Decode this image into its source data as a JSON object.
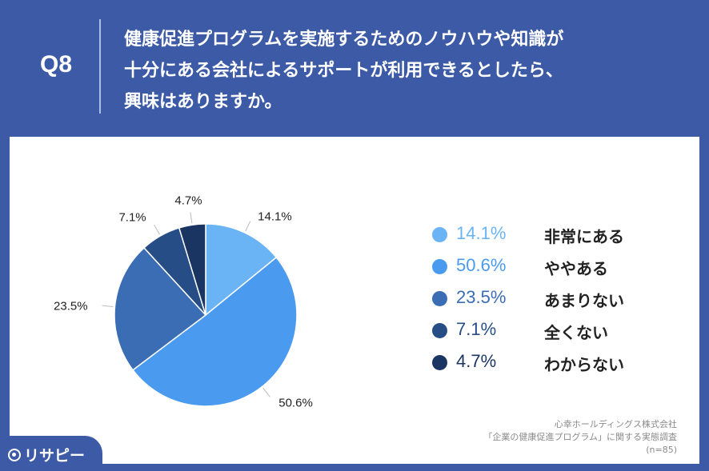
{
  "header": {
    "question_number": "Q8",
    "question_lines": [
      "健康促進プログラムを実施するためのノウハウや知識が",
      "十分にある会社によるサポートが利用できるとしたら、",
      "興味はありますか。"
    ]
  },
  "chart_data": {
    "type": "pie",
    "slices": [
      {
        "label": "非常にある",
        "value": 14.1,
        "display": "14.1%",
        "color": "#6ab4f5"
      },
      {
        "label": "ややある",
        "value": 50.6,
        "display": "50.6%",
        "color": "#4a9bf0"
      },
      {
        "label": "あまりない",
        "value": 23.5,
        "display": "23.5%",
        "color": "#3a6db4"
      },
      {
        "label": "全くない",
        "value": 7.1,
        "display": "7.1%",
        "color": "#274d86"
      },
      {
        "label": "わからない",
        "value": 4.7,
        "display": "4.7%",
        "color": "#1b3563"
      }
    ],
    "start_angle_deg": 0,
    "direction": "clockwise",
    "legend_position": "right"
  },
  "source": {
    "company": "心幸ホールディングス株式会社",
    "survey": "「企業の健康促進プログラム」に関する実態調査",
    "sample": "(n=85)"
  },
  "logo": {
    "text": "リサピー"
  }
}
